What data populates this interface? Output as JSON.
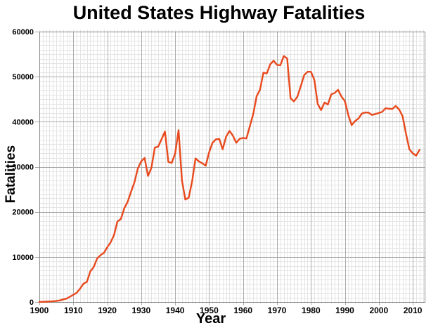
{
  "chart_data": {
    "type": "line",
    "title": "United States Highway Fatalities",
    "xlabel": "Year",
    "ylabel": "Fatalities",
    "xlim": [
      1900,
      2013.5
    ],
    "ylim": [
      0,
      60000
    ],
    "xticks": [
      1900,
      1910,
      1920,
      1930,
      1940,
      1950,
      1960,
      1970,
      1980,
      1990,
      2000,
      2010
    ],
    "yticks": [
      0,
      10000,
      20000,
      30000,
      40000,
      50000,
      60000
    ],
    "x_minor_step": 1,
    "y_minor_step": 1000,
    "grid": {
      "on": true,
      "minor_color": "#e4e4e4",
      "major_color": "#ababab",
      "frame_color": "#8a8a8a"
    },
    "legend": {
      "visible": false
    },
    "series": [
      {
        "name": "Highway fatalities",
        "color": "#e8491d",
        "x": [
          1900,
          1901,
          1902,
          1903,
          1904,
          1905,
          1906,
          1907,
          1908,
          1909,
          1910,
          1911,
          1912,
          1913,
          1914,
          1915,
          1916,
          1917,
          1918,
          1919,
          1920,
          1921,
          1922,
          1923,
          1924,
          1925,
          1926,
          1927,
          1928,
          1929,
          1930,
          1931,
          1932,
          1933,
          1934,
          1935,
          1936,
          1937,
          1938,
          1939,
          1940,
          1941,
          1942,
          1943,
          1944,
          1945,
          1946,
          1947,
          1948,
          1949,
          1950,
          1951,
          1952,
          1953,
          1954,
          1955,
          1956,
          1957,
          1958,
          1959,
          1960,
          1961,
          1962,
          1963,
          1964,
          1965,
          1966,
          1967,
          1968,
          1969,
          1970,
          1971,
          1972,
          1973,
          1974,
          1975,
          1976,
          1977,
          1978,
          1979,
          1980,
          1981,
          1982,
          1983,
          1984,
          1985,
          1986,
          1987,
          1988,
          1989,
          1990,
          1991,
          1992,
          1993,
          1994,
          1995,
          1996,
          1997,
          1998,
          1999,
          2000,
          2001,
          2002,
          2003,
          2004,
          2005,
          2006,
          2007,
          2008,
          2009,
          2010,
          2011,
          2012
        ],
        "y": [
          36,
          54,
          79,
          117,
          172,
          252,
          338,
          581,
          751,
          1174,
          1599,
          2043,
          2968,
          4079,
          4468,
          6779,
          7766,
          9630,
          10390,
          10896,
          12155,
          13253,
          14859,
          17870,
          18400,
          20771,
          22194,
          24470,
          26557,
          29592,
          31204,
          31963,
          27979,
          29746,
          34240,
          34494,
          36126,
          37819,
          31083,
          30895,
          32914,
          38142,
          27007,
          22727,
          23165,
          26785,
          31874,
          31193,
          30775,
          30246,
          33186,
          35309,
          36088,
          36190,
          33890,
          36688,
          37965,
          36932,
          35331,
          36223,
          36399,
          36285,
          38980,
          41723,
          45645,
          47089,
          50894,
          50724,
          52725,
          53543,
          52627,
          52542,
          54589,
          54052,
          45196,
          44525,
          45523,
          47878,
          50331,
          51093,
          51091,
          49301,
          43945,
          42589,
          44257,
          43825,
          46087,
          46390,
          47087,
          45582,
          44599,
          41508,
          39250,
          40150,
          40716,
          41817,
          42065,
          42013,
          41501,
          41717,
          41945,
          42196,
          43005,
          42884,
          42836,
          43510,
          42708,
          41259,
          37423,
          33883,
          32999,
          32479,
          33782
        ]
      }
    ]
  }
}
